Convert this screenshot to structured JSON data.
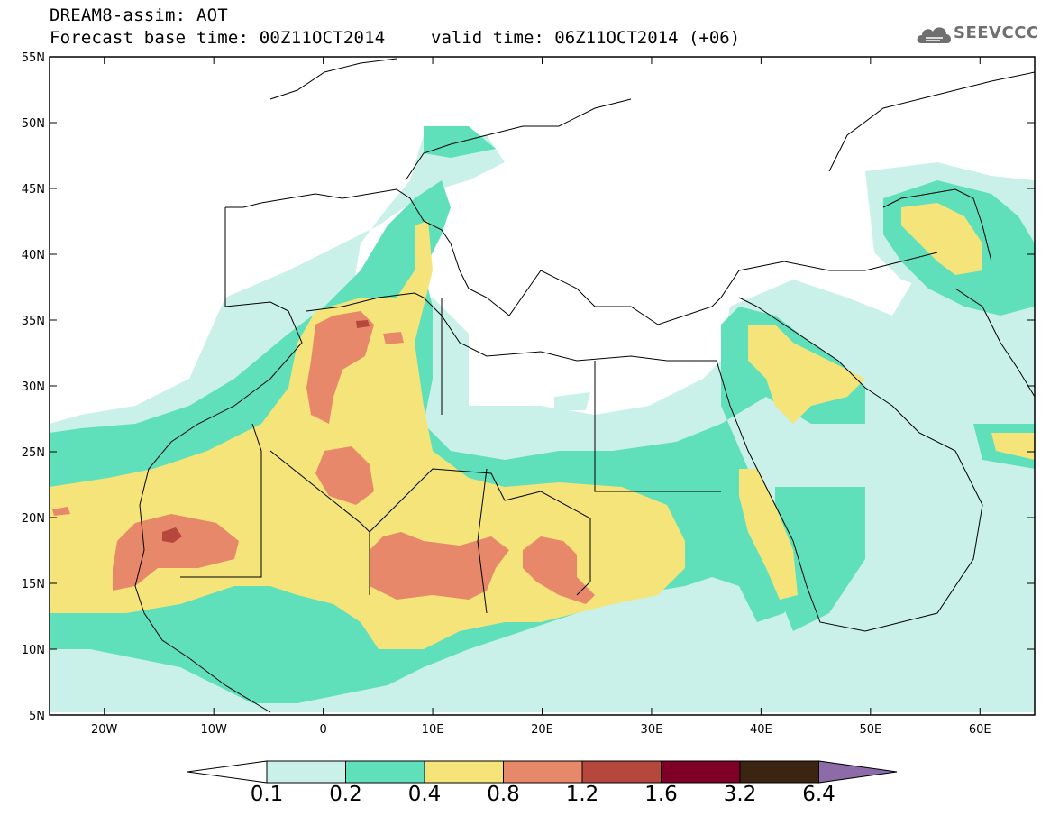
{
  "header": {
    "title_line1": "DREAM8-assim: AOT",
    "title_line2": "Forecast base time: 00Z11OCT2014",
    "valid_time": "valid time: 06Z11OCT2014 (+06)",
    "logo_text": "SEEVCCC"
  },
  "map": {
    "lon_range": [
      -25,
      65
    ],
    "lat_range": [
      5,
      55
    ],
    "lon_ticks": [
      "20W",
      "10W",
      "0",
      "10E",
      "20E",
      "30E",
      "40E",
      "50E",
      "60E"
    ],
    "lat_ticks": [
      "55N",
      "50N",
      "45N",
      "40N",
      "35N",
      "30N",
      "25N",
      "20N",
      "15N",
      "10N",
      "5N"
    ]
  },
  "colorbar": {
    "levels": [
      "0.1",
      "0.2",
      "0.4",
      "0.8",
      "1.2",
      "1.6",
      "3.2",
      "6.4"
    ],
    "colors": [
      "#c9f1ea",
      "#5fe0bb",
      "#f4e47a",
      "#e8886a",
      "#b5473d",
      "#7f0026",
      "#3c2413",
      "#8d6aa8"
    ]
  }
}
